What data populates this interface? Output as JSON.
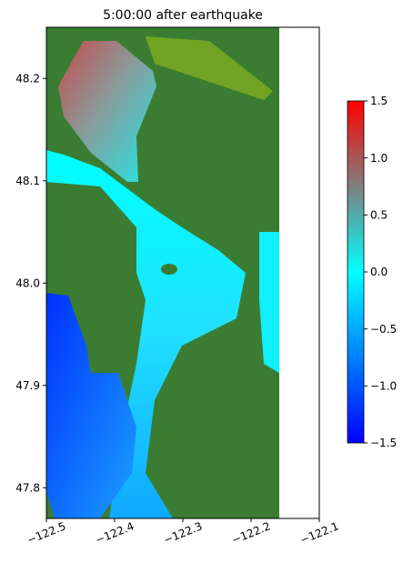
{
  "chart_data": {
    "type": "heatmap",
    "title": "5:00:00 after earthquake",
    "xlim": [
      -122.5,
      -122.1
    ],
    "xticks": [
      {
        "value": -122.5,
        "label": "−122.5"
      },
      {
        "value": -122.4,
        "label": "−122.4"
      },
      {
        "value": -122.3,
        "label": "−122.3"
      },
      {
        "value": -122.2,
        "label": "−122.2"
      },
      {
        "value": -122.1,
        "label": "−122.1"
      }
    ],
    "ylim": [
      47.77,
      48.25
    ],
    "yticks": [
      47.8,
      47.9,
      {
        "value": 48.0,
        "label": "48.0"
      },
      48.1,
      48.2
    ],
    "colorbar": {
      "lim": [
        -1.5,
        1.5
      ],
      "colors": [
        "#0000ff",
        "#00ffff",
        "#ff0000"
      ],
      "ticks": [
        {
          "value": -1.5,
          "label": "−1.5"
        },
        {
          "value": -1.0,
          "label": "−1.0"
        },
        {
          "value": -0.5,
          "label": "−0.5"
        },
        {
          "value": 0.0,
          "label": "0.0"
        },
        0.5,
        {
          "value": 1.0,
          "label": "1.0"
        },
        1.5
      ]
    }
  }
}
